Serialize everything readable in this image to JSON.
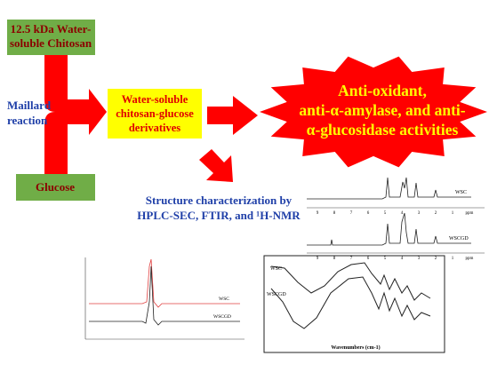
{
  "nodes": {
    "chitosan": {
      "lines": [
        "12.5 kDa Water-",
        "soluble Chitosan"
      ]
    },
    "glucose": {
      "lines": [
        "Glucose"
      ]
    },
    "maillard": {
      "lines": [
        "Maillard",
        "reaction"
      ]
    },
    "derivatives": {
      "lines": [
        "Water-soluble",
        "chitosan-glucose",
        "derivatives"
      ]
    },
    "activities": {
      "lines": [
        "Anti-oxidant,",
        "anti-α-amylase, and anti-",
        "α-glucosidase activities"
      ]
    },
    "characterization": {
      "lines": [
        "Structure characterization by",
        "HPLC-SEC, FTIR, and ¹H-NMR"
      ]
    }
  },
  "nmr": {
    "traces": [
      "WSC",
      "WSCGD"
    ],
    "ticks": [
      "9",
      "8",
      "7",
      "6",
      "5",
      "4",
      "3",
      "2",
      "1",
      "ppm"
    ]
  },
  "hplc": {
    "traces": [
      "WSC",
      "WSCGD"
    ]
  },
  "ftir": {
    "traces": [
      "WSC",
      "WSCGD"
    ],
    "xlabel": "Wavenumbers (cm-1)"
  }
}
